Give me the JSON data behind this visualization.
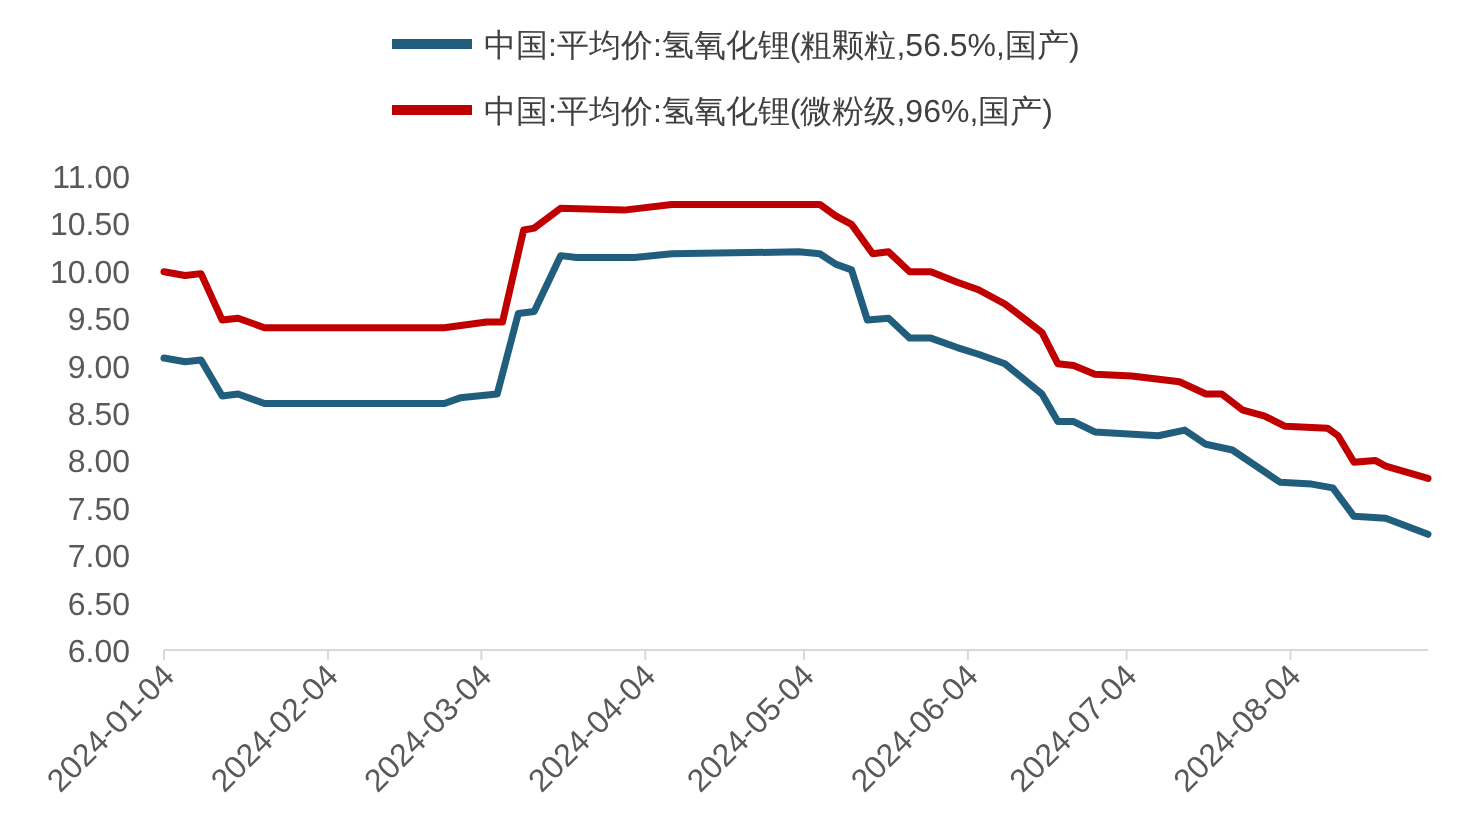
{
  "chart_data": {
    "type": "line",
    "legend": "top",
    "line_style": "solid",
    "marker": "none",
    "grid": false,
    "xlim": [
      "2024-01-04",
      "2024-08-30"
    ],
    "xticks": [
      "2024-01-04",
      "2024-02-04",
      "2024-03-04",
      "2024-04-04",
      "2024-05-04",
      "2024-06-04",
      "2024-07-04",
      "2024-08-04"
    ],
    "ylim": [
      6,
      11
    ],
    "yticks": [
      {
        "value": 6,
        "label": "6.00"
      },
      {
        "value": 6.5,
        "label": "6.50"
      },
      {
        "value": 7,
        "label": "7.00"
      },
      {
        "value": 7.5,
        "label": "7.50"
      },
      {
        "value": 8,
        "label": "8.00"
      },
      {
        "value": 8.5,
        "label": "8.50"
      },
      {
        "value": 9,
        "label": "9.00"
      },
      {
        "value": 9.5,
        "label": "9.50"
      },
      {
        "value": 10,
        "label": "10.00"
      },
      {
        "value": 10.5,
        "label": "10.50"
      },
      {
        "value": 11,
        "label": "11.00"
      }
    ],
    "series": [
      {
        "name": "中国:平均价:氢氧化锂(粗颗粒,56.5%,国产)",
        "color": "#215e7d",
        "x": [
          "2024-01-04",
          "2024-01-08",
          "2024-01-11",
          "2024-01-15",
          "2024-01-18",
          "2024-01-23",
          "2024-02-26",
          "2024-02-29",
          "2024-03-07",
          "2024-03-11",
          "2024-03-14",
          "2024-03-19",
          "2024-03-22",
          "2024-04-02",
          "2024-04-09",
          "2024-05-03",
          "2024-05-07",
          "2024-05-10",
          "2024-05-13",
          "2024-05-16",
          "2024-05-20",
          "2024-05-24",
          "2024-05-28",
          "2024-06-02",
          "2024-06-06",
          "2024-06-11",
          "2024-06-18",
          "2024-06-21",
          "2024-06-24",
          "2024-06-28",
          "2024-07-10",
          "2024-07-15",
          "2024-07-19",
          "2024-07-24",
          "2024-08-02",
          "2024-08-08",
          "2024-08-12",
          "2024-08-16",
          "2024-08-22",
          "2024-08-30"
        ],
        "values": [
          9.08,
          9.04,
          9.06,
          8.68,
          8.7,
          8.6,
          8.6,
          8.66,
          8.7,
          9.55,
          9.57,
          10.16,
          10.14,
          10.14,
          10.18,
          10.2,
          10.18,
          10.07,
          10.01,
          9.48,
          9.5,
          9.29,
          9.29,
          9.19,
          9.12,
          9.02,
          8.7,
          8.41,
          8.41,
          8.3,
          8.26,
          8.32,
          8.17,
          8.11,
          7.77,
          7.75,
          7.71,
          7.41,
          7.39,
          7.22
        ]
      },
      {
        "name": "中国:平均价:氢氧化锂(微粉级,96%,国产)",
        "color": "#c00000",
        "x": [
          "2024-01-04",
          "2024-01-08",
          "2024-01-11",
          "2024-01-15",
          "2024-01-18",
          "2024-01-23",
          "2024-02-26",
          "2024-03-05",
          "2024-03-08",
          "2024-03-12",
          "2024-03-14",
          "2024-03-19",
          "2024-03-31",
          "2024-04-09",
          "2024-05-03",
          "2024-05-07",
          "2024-05-10",
          "2024-05-13",
          "2024-05-17",
          "2024-05-20",
          "2024-05-24",
          "2024-05-28",
          "2024-06-02",
          "2024-06-06",
          "2024-06-11",
          "2024-06-15",
          "2024-06-18",
          "2024-06-21",
          "2024-06-24",
          "2024-06-28",
          "2024-07-05",
          "2024-07-14",
          "2024-07-19",
          "2024-07-22",
          "2024-07-26",
          "2024-07-30",
          "2024-08-03",
          "2024-08-11",
          "2024-08-13",
          "2024-08-16",
          "2024-08-20",
          "2024-08-22",
          "2024-08-30"
        ],
        "values": [
          9.99,
          9.95,
          9.97,
          9.48,
          9.5,
          9.4,
          9.4,
          9.46,
          9.46,
          10.43,
          10.45,
          10.66,
          10.64,
          10.7,
          10.7,
          10.7,
          10.58,
          10.49,
          10.18,
          10.2,
          9.99,
          9.99,
          9.88,
          9.8,
          9.65,
          9.48,
          9.35,
          9.02,
          9.0,
          8.91,
          8.89,
          8.83,
          8.7,
          8.7,
          8.53,
          8.47,
          8.36,
          8.34,
          8.26,
          7.98,
          8.0,
          7.94,
          7.81
        ]
      }
    ]
  }
}
